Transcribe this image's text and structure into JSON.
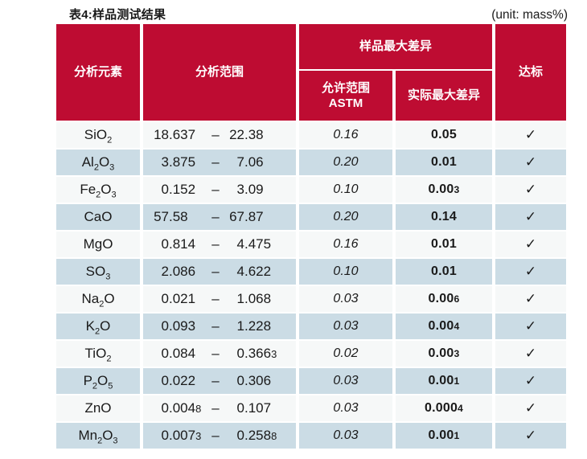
{
  "title": "表4:样品测试结果",
  "unit": "(unit: mass%)",
  "colors": {
    "header_red": "#BE0C32",
    "row_blue": "#CBDCE5",
    "row_white": "#F6F8F8"
  },
  "table": {
    "headers": {
      "element": "分析元素",
      "range": "分析范围",
      "max_diff_group": "样品最大差异",
      "allowed_line1": "允许范围",
      "allowed_line2": "ASTM",
      "actual": "实际最大差异",
      "pass": "达标"
    },
    "rows": [
      {
        "element": "SiO2",
        "min": "18.637",
        "max": "22.38",
        "astm": "0.16",
        "actual": "0.05",
        "pass": "✓"
      },
      {
        "element": "Al2O3",
        "min": "3.875",
        "max": "7.06",
        "astm": "0.20",
        "actual": "0.01",
        "pass": "✓"
      },
      {
        "element": "Fe2O3",
        "min": "0.152",
        "max": "3.09",
        "astm": "0.10",
        "actual": "0.003",
        "pass": "✓"
      },
      {
        "element": "CaO",
        "min": "57.58",
        "max": "67.87",
        "astm": "0.20",
        "actual": "0.14",
        "pass": "✓"
      },
      {
        "element": "MgO",
        "min": "0.814",
        "max": "4.475",
        "astm": "0.16",
        "actual": "0.01",
        "pass": "✓"
      },
      {
        "element": "SO3",
        "min": "2.086",
        "max": "4.622",
        "astm": "0.10",
        "actual": "0.01",
        "pass": "✓"
      },
      {
        "element": "Na2O",
        "min": "0.021",
        "max": "1.068",
        "astm": "0.03",
        "actual": "0.006",
        "pass": "✓"
      },
      {
        "element": "K2O",
        "min": "0.093",
        "max": "1.228",
        "astm": "0.03",
        "actual": "0.004",
        "pass": "✓"
      },
      {
        "element": "TiO2",
        "min": "0.084",
        "max": "0.3663",
        "astm": "0.02",
        "actual": "0.003",
        "pass": "✓"
      },
      {
        "element": "P2O5",
        "min": "0.022",
        "max": "0.306",
        "astm": "0.03",
        "actual": "0.001",
        "pass": "✓"
      },
      {
        "element": "ZnO",
        "min": "0.0048",
        "max": "0.107",
        "astm": "0.03",
        "actual": "0.0004",
        "pass": "✓"
      },
      {
        "element": "Mn2O3",
        "min": "0.0073",
        "max": "0.2588",
        "astm": "0.03",
        "actual": "0.001",
        "pass": "✓"
      }
    ]
  }
}
